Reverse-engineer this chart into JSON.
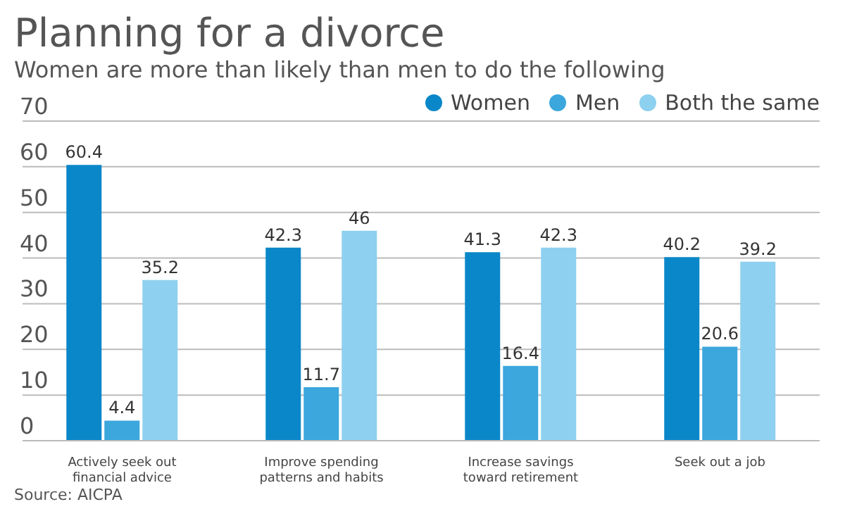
{
  "chart_data": {
    "type": "bar",
    "title": "Planning for a divorce",
    "subtitle": "Women are more than likely than men to do the following",
    "categories": [
      "Actively seek out financial advice",
      "Improve spending patterns and habits",
      "Increase savings toward retirement",
      "Seek out a job"
    ],
    "series": [
      {
        "name": "Women",
        "color": "#0a87c9",
        "values": [
          60.4,
          42.3,
          41.3,
          40.2
        ]
      },
      {
        "name": "Men",
        "color": "#3ba7dd",
        "values": [
          4.4,
          11.7,
          16.4,
          20.6
        ]
      },
      {
        "name": "Both the same",
        "color": "#8ed0ef",
        "values": [
          35.2,
          46,
          42.3,
          39.2
        ]
      }
    ],
    "ylim": [
      0,
      70
    ],
    "yticks": [
      0,
      10,
      20,
      30,
      40,
      50,
      60,
      70
    ],
    "grid": "y",
    "legend": "top right",
    "data_labels": true,
    "annotations": [
      "Source: AICPA"
    ]
  }
}
